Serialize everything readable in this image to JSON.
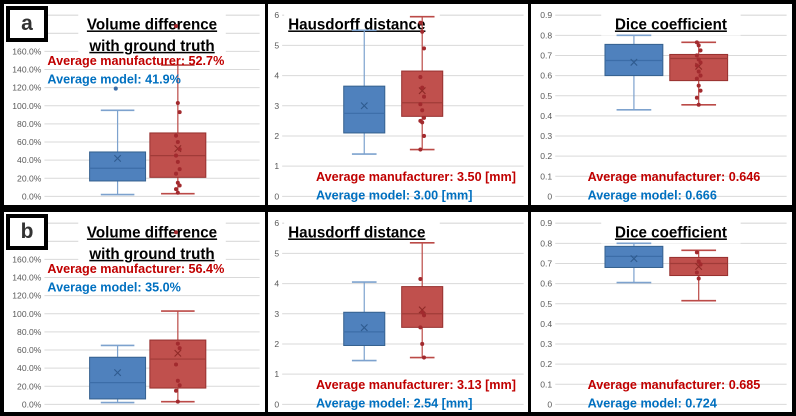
{
  "figure": {
    "rows": [
      {
        "label": "a"
      },
      {
        "label": "b"
      }
    ]
  },
  "colors": {
    "background": "#FFFFFF",
    "panel_border": "#000000",
    "gridline": "#D9D9D9",
    "axis_text": "#595959",
    "title_text": "#000000",
    "annotation_manufacturer": "#C00000",
    "annotation_model": "#0070C0",
    "series": {
      "model": {
        "fill": "#4F81BD",
        "stroke": "#35618F",
        "whisker": "#7DA2CE",
        "median": "#3C6DA8",
        "mean": "#2F5B8F",
        "point": "#3C6DA8"
      },
      "manufacturer": {
        "fill": "#C0504D",
        "stroke": "#97312F",
        "whisker": "#BB4A47",
        "median": "#A03B38",
        "mean": "#8F2A27",
        "point": "#A22A2E"
      }
    }
  },
  "chart_data": [
    {
      "id": "a-volume-difference",
      "panel": "a",
      "metric": "volume-difference",
      "type": "box",
      "title_lines": [
        "Volume difference",
        "with ground truth"
      ],
      "title_align": "center",
      "ylim": [
        0,
        200
      ],
      "grid_step": 20,
      "label_width": 40,
      "yticks": [
        {
          "value": 0,
          "label": "0.0%"
        },
        {
          "value": 20,
          "label": "20.0%"
        },
        {
          "value": 40,
          "label": "40.0%"
        },
        {
          "value": 60,
          "label": "60.0%"
        },
        {
          "value": 80,
          "label": "80.0%"
        },
        {
          "value": 100,
          "label": "100.0%"
        },
        {
          "value": 120,
          "label": "120.0%"
        },
        {
          "value": 140,
          "label": "140.0%"
        },
        {
          "value": 160,
          "label": "160.0%"
        }
      ],
      "annotation": {
        "position": "top",
        "manufacturer": "Average manufacturer: 52.7%",
        "model": "Average model: 41.9%"
      },
      "series": [
        {
          "name": "model",
          "role": "model",
          "center": 0.34,
          "box_width": 0.26,
          "whisker_low": 2,
          "q1": 17,
          "median": 31,
          "q3": 49,
          "whisker_high": 95,
          "mean": 41.9,
          "points": [
            119
          ]
        },
        {
          "name": "manufacturer",
          "role": "manufacturer",
          "center": 0.62,
          "box_width": 0.26,
          "whisker_low": 3,
          "q1": 21,
          "median": 45,
          "q3": 70,
          "whisker_high": 145,
          "mean": 52.7,
          "points": [
            188,
            103,
            93,
            67,
            60,
            52,
            45,
            38,
            30,
            25,
            15,
            12,
            8,
            4
          ]
        }
      ]
    },
    {
      "id": "a-hausdorff-distance",
      "panel": "a",
      "metric": "hausdorff-distance",
      "type": "box",
      "title_lines": [
        "Hausdorff distance"
      ],
      "title_align": "left",
      "ylim": [
        0,
        6
      ],
      "grid_step": 1,
      "label_width": 14,
      "yticks": [
        {
          "value": 0,
          "label": "0"
        },
        {
          "value": 1,
          "label": "1"
        },
        {
          "value": 2,
          "label": "2"
        },
        {
          "value": 3,
          "label": "3"
        },
        {
          "value": 4,
          "label": "4"
        },
        {
          "value": 5,
          "label": "5"
        },
        {
          "value": 6,
          "label": "6"
        }
      ],
      "annotation": {
        "position": "bottom",
        "manufacturer": "Average manufacturer: 3.50 [mm]",
        "model": "Average model: 3.00 [mm]"
      },
      "series": [
        {
          "name": "model",
          "role": "model",
          "center": 0.34,
          "box_width": 0.17,
          "whisker_low": 1.4,
          "q1": 2.1,
          "median": 2.75,
          "q3": 3.65,
          "whisker_high": 5.5,
          "mean": 3.0,
          "points": []
        },
        {
          "name": "manufacturer",
          "role": "manufacturer",
          "center": 0.58,
          "box_width": 0.17,
          "whisker_low": 1.55,
          "q1": 2.65,
          "median": 3.1,
          "q3": 4.15,
          "whisker_high": 5.95,
          "mean": 3.5,
          "points": [
            5.75,
            5.45,
            4.9,
            3.95,
            3.6,
            3.3,
            3.05,
            2.85,
            2.6,
            2.5,
            2.45,
            2.0,
            1.55
          ]
        }
      ]
    },
    {
      "id": "a-dice-coefficient",
      "panel": "a",
      "metric": "dice-coefficient",
      "type": "box",
      "title_lines": [
        "Dice coefficient"
      ],
      "title_align": "center",
      "ylim": [
        0,
        0.9
      ],
      "grid_step": 0.1,
      "label_width": 24,
      "yticks": [
        {
          "value": 0,
          "label": "0"
        },
        {
          "value": 0.1,
          "label": "0.1"
        },
        {
          "value": 0.2,
          "label": "0.2"
        },
        {
          "value": 0.3,
          "label": "0.3"
        },
        {
          "value": 0.4,
          "label": "0.4"
        },
        {
          "value": 0.5,
          "label": "0.5"
        },
        {
          "value": 0.6,
          "label": "0.6"
        },
        {
          "value": 0.7,
          "label": "0.7"
        },
        {
          "value": 0.8,
          "label": "0.8"
        },
        {
          "value": 0.9,
          "label": "0.9"
        }
      ],
      "annotation": {
        "position": "bottom",
        "manufacturer": "Average manufacturer: 0.646",
        "model": "Average model: 0.666"
      },
      "series": [
        {
          "name": "model",
          "role": "model",
          "center": 0.34,
          "box_width": 0.25,
          "whisker_low": 0.43,
          "q1": 0.6,
          "median": 0.675,
          "q3": 0.755,
          "whisker_high": 0.8,
          "mean": 0.666,
          "points": []
        },
        {
          "name": "manufacturer",
          "role": "manufacturer",
          "center": 0.62,
          "box_width": 0.25,
          "whisker_low": 0.455,
          "q1": 0.575,
          "median": 0.685,
          "q3": 0.705,
          "whisker_high": 0.765,
          "mean": 0.646,
          "points": [
            0.765,
            0.75,
            0.725,
            0.7,
            0.68,
            0.665,
            0.65,
            0.62,
            0.6,
            0.585,
            0.55,
            0.525,
            0.49,
            0.455
          ]
        }
      ]
    },
    {
      "id": "b-volume-difference",
      "panel": "b",
      "metric": "volume-difference",
      "type": "box",
      "title_lines": [
        "Volume difference",
        "with ground truth"
      ],
      "title_align": "center",
      "ylim": [
        0,
        200
      ],
      "grid_step": 20,
      "label_width": 40,
      "yticks": [
        {
          "value": 0,
          "label": "0.0%"
        },
        {
          "value": 20,
          "label": "20.0%"
        },
        {
          "value": 40,
          "label": "40.0%"
        },
        {
          "value": 60,
          "label": "60.0%"
        },
        {
          "value": 80,
          "label": "80.0%"
        },
        {
          "value": 100,
          "label": "100.0%"
        },
        {
          "value": 120,
          "label": "120.0%"
        },
        {
          "value": 140,
          "label": "140.0%"
        },
        {
          "value": 160,
          "label": "160.0%"
        }
      ],
      "annotation": {
        "position": "top",
        "manufacturer": "Average manufacturer: 56.4%",
        "model": "Average model: 35.0%"
      },
      "series": [
        {
          "name": "model",
          "role": "model",
          "center": 0.34,
          "box_width": 0.26,
          "whisker_low": 2,
          "q1": 6,
          "median": 24,
          "q3": 52,
          "whisker_high": 65,
          "mean": 35.0,
          "points": []
        },
        {
          "name": "manufacturer",
          "role": "manufacturer",
          "center": 0.62,
          "box_width": 0.26,
          "whisker_low": 3,
          "q1": 18,
          "median": 50,
          "q3": 71,
          "whisker_high": 103,
          "mean": 56.4,
          "points": [
            190,
            67,
            62,
            44,
            26,
            21,
            15,
            3
          ]
        }
      ]
    },
    {
      "id": "b-hausdorff-distance",
      "panel": "b",
      "metric": "hausdorff-distance",
      "type": "box",
      "title_lines": [
        "Hausdorff distance"
      ],
      "title_align": "left",
      "ylim": [
        0,
        6
      ],
      "grid_step": 1,
      "label_width": 14,
      "yticks": [
        {
          "value": 0,
          "label": "0"
        },
        {
          "value": 1,
          "label": "1"
        },
        {
          "value": 2,
          "label": "2"
        },
        {
          "value": 3,
          "label": "3"
        },
        {
          "value": 4,
          "label": "4"
        },
        {
          "value": 5,
          "label": "5"
        },
        {
          "value": 6,
          "label": "6"
        }
      ],
      "annotation": {
        "position": "bottom",
        "manufacturer": "Average manufacturer: 3.13 [mm]",
        "model": "Average model: 2.54 [mm]"
      },
      "series": [
        {
          "name": "model",
          "role": "model",
          "center": 0.34,
          "box_width": 0.17,
          "whisker_low": 1.45,
          "q1": 1.95,
          "median": 2.4,
          "q3": 3.05,
          "whisker_high": 4.05,
          "mean": 2.54,
          "points": []
        },
        {
          "name": "manufacturer",
          "role": "manufacturer",
          "center": 0.58,
          "box_width": 0.17,
          "whisker_low": 1.55,
          "q1": 2.55,
          "median": 3.0,
          "q3": 3.9,
          "whisker_high": 5.35,
          "mean": 3.13,
          "points": [
            4.15,
            3.05,
            2.95,
            2.55,
            2.0,
            1.55
          ]
        }
      ]
    },
    {
      "id": "b-dice-coefficient",
      "panel": "b",
      "metric": "dice-coefficient",
      "type": "box",
      "title_lines": [
        "Dice coefficient"
      ],
      "title_align": "center",
      "ylim": [
        0,
        0.9
      ],
      "grid_step": 0.1,
      "label_width": 24,
      "yticks": [
        {
          "value": 0,
          "label": "0"
        },
        {
          "value": 0.1,
          "label": "0.1"
        },
        {
          "value": 0.2,
          "label": "0.2"
        },
        {
          "value": 0.3,
          "label": "0.3"
        },
        {
          "value": 0.4,
          "label": "0.4"
        },
        {
          "value": 0.5,
          "label": "0.5"
        },
        {
          "value": 0.6,
          "label": "0.6"
        },
        {
          "value": 0.7,
          "label": "0.7"
        },
        {
          "value": 0.8,
          "label": "0.8"
        },
        {
          "value": 0.9,
          "label": "0.9"
        }
      ],
      "annotation": {
        "position": "bottom",
        "manufacturer": "Average manufacturer: 0.685",
        "model": "Average model: 0.724"
      },
      "series": [
        {
          "name": "model",
          "role": "model",
          "center": 0.34,
          "box_width": 0.25,
          "whisker_low": 0.605,
          "q1": 0.68,
          "median": 0.735,
          "q3": 0.785,
          "whisker_high": 0.8,
          "mean": 0.724,
          "points": []
        },
        {
          "name": "manufacturer",
          "role": "manufacturer",
          "center": 0.62,
          "box_width": 0.25,
          "whisker_low": 0.515,
          "q1": 0.64,
          "median": 0.7,
          "q3": 0.73,
          "whisker_high": 0.765,
          "mean": 0.685,
          "points": [
            0.755,
            0.71,
            0.695,
            0.655,
            0.625
          ]
        }
      ]
    }
  ]
}
